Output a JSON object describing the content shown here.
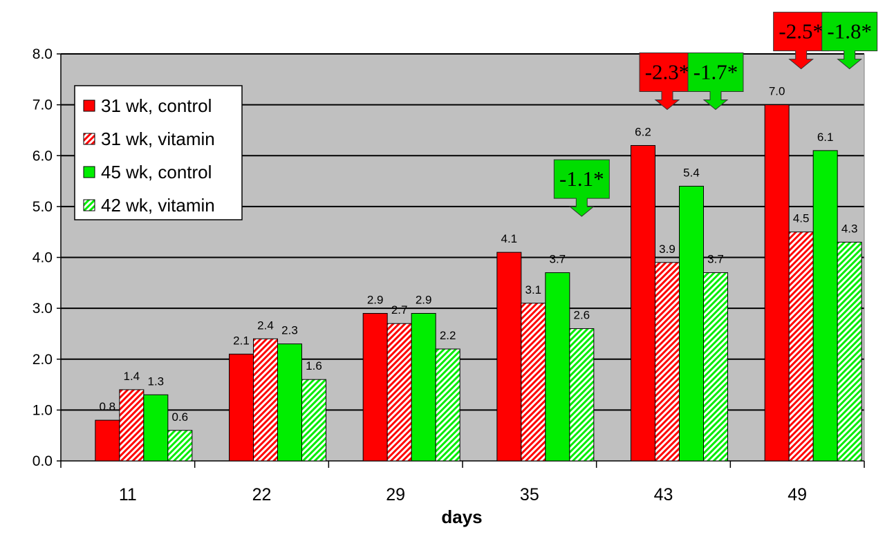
{
  "chart_data": {
    "type": "bar",
    "title": "",
    "xlabel": "days",
    "ylabel": "",
    "ylim": [
      0,
      8
    ],
    "yticks": [
      "0.0",
      "1.0",
      "2.0",
      "3.0",
      "4.0",
      "5.0",
      "6.0",
      "7.0",
      "8.0"
    ],
    "categories": [
      "11",
      "22",
      "29",
      "35",
      "43",
      "49"
    ],
    "grid": true,
    "legend_position": "top-left",
    "series": [
      {
        "name": "31 wk, control",
        "color": "#ff0000",
        "pattern": "solid",
        "values": [
          0.8,
          2.1,
          2.9,
          4.1,
          6.2,
          7.0
        ],
        "labels": [
          "0.8",
          "2.1",
          "2.9",
          "4.1",
          "6.2",
          "7.0"
        ]
      },
      {
        "name": "31 wk, vitamin",
        "color": "#ff0000",
        "pattern": "hatched",
        "values": [
          1.4,
          2.4,
          2.7,
          3.1,
          3.9,
          4.5
        ],
        "labels": [
          "1.4",
          "2.4",
          "2.7",
          "3.1",
          "3.9",
          "4.5"
        ]
      },
      {
        "name": "45 wk, control",
        "color": "#00ee00",
        "pattern": "solid",
        "values": [
          1.3,
          2.3,
          2.9,
          3.7,
          5.4,
          6.1
        ],
        "labels": [
          "1.3",
          "2.3",
          "2.9",
          "3.7",
          "5.4",
          "6.1"
        ]
      },
      {
        "name": "42 wk, vitamin",
        "color": "#00ee00",
        "pattern": "hatched",
        "values": [
          0.6,
          1.6,
          2.2,
          2.6,
          3.7,
          4.3
        ],
        "labels": [
          "0.6",
          "1.6",
          "2.2",
          "2.6",
          "3.7",
          "4.3"
        ]
      }
    ],
    "annotations": [
      {
        "text": "-1.1*",
        "category": "35",
        "series": "42 wk, vitamin",
        "color": "#00dd00"
      },
      {
        "text": "-2.3*",
        "category": "43",
        "series": "31 wk, vitamin",
        "color": "#ff0000"
      },
      {
        "text": "-1.7*",
        "category": "43",
        "series": "42 wk, vitamin",
        "color": "#00dd00"
      },
      {
        "text": "-2.5*",
        "category": "49",
        "series": "31 wk, vitamin",
        "color": "#ff0000"
      },
      {
        "text": "-1.8*",
        "category": "49",
        "series": "42 wk, vitamin",
        "color": "#00dd00"
      }
    ],
    "colors": {
      "plot_background": "#c0c0c0",
      "red": "#ff0000",
      "green": "#00ee00"
    }
  }
}
